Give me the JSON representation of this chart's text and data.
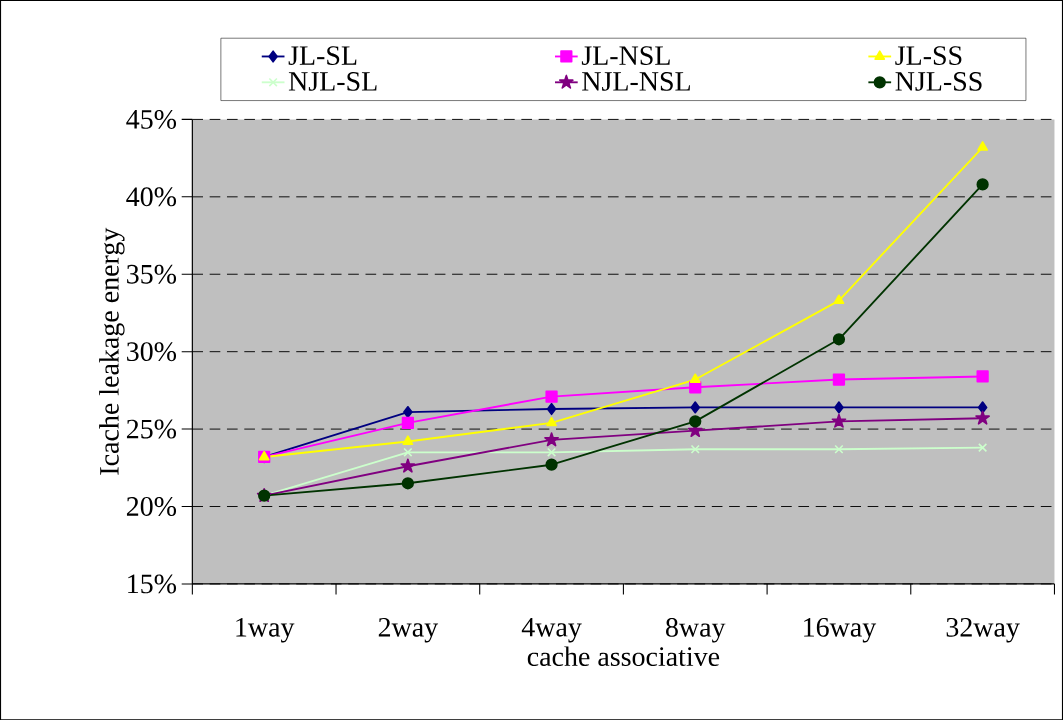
{
  "chart_data": {
    "type": "line",
    "xlabel": "cache associative",
    "ylabel": "Icache leakage energy",
    "categories": [
      "1way",
      "2way",
      "4way",
      "8way",
      "16way",
      "32way"
    ],
    "ylim": [
      15,
      45
    ],
    "yticks": [
      {
        "value": 15,
        "label": "15%"
      },
      {
        "value": 20,
        "label": "20%"
      },
      {
        "value": 25,
        "label": "25%"
      },
      {
        "value": 30,
        "label": "30%"
      },
      {
        "value": 35,
        "label": "35%"
      },
      {
        "value": 40,
        "label": "40%"
      },
      {
        "value": 45,
        "label": "45%"
      }
    ],
    "grid": "y",
    "legend": "top",
    "line_style": "solid",
    "series": [
      {
        "name": "JL-SL",
        "color": "#000080",
        "marker": "diamond",
        "values": [
          23.2,
          26.1,
          26.3,
          26.4,
          26.4,
          26.4
        ]
      },
      {
        "name": "JL-NSL",
        "color": "#ff00ff",
        "marker": "square",
        "values": [
          23.2,
          25.4,
          27.1,
          27.7,
          28.2,
          28.4
        ]
      },
      {
        "name": "JL-SS",
        "color": "#ffff00",
        "marker": "triangle",
        "values": [
          23.2,
          24.2,
          25.4,
          28.2,
          33.3,
          43.2
        ]
      },
      {
        "name": "NJL-SL",
        "color": "#ccffcc",
        "marker": "cross",
        "values": [
          20.7,
          23.5,
          23.5,
          23.7,
          23.7,
          23.8
        ]
      },
      {
        "name": "NJL-NSL",
        "color": "#800080",
        "marker": "star",
        "values": [
          20.7,
          22.6,
          24.3,
          24.9,
          25.5,
          25.7
        ]
      },
      {
        "name": "NJL-SS",
        "color": "#003300",
        "marker": "circle",
        "values": [
          20.7,
          21.5,
          22.7,
          25.5,
          30.8,
          40.8
        ]
      }
    ]
  }
}
